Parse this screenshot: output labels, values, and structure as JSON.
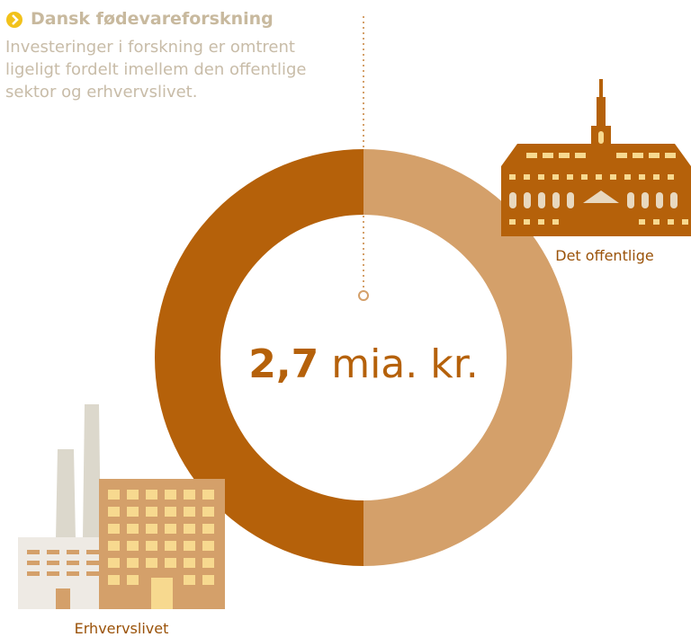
{
  "chart_data": {
    "type": "donut",
    "title": "Dansk fødevareforskning",
    "subtitle": "Investeringer i forskning er omtrent ligeligt fordelt imellem den offentlige sektor og erhvervslivet.",
    "center_value": "2,7",
    "center_unit": "mia. kr.",
    "categories": [
      "Det offentlige",
      "Erhvervslivet"
    ],
    "values": [
      50,
      50
    ],
    "colors": [
      "#d4a06a",
      "#b5610a"
    ]
  }
}
